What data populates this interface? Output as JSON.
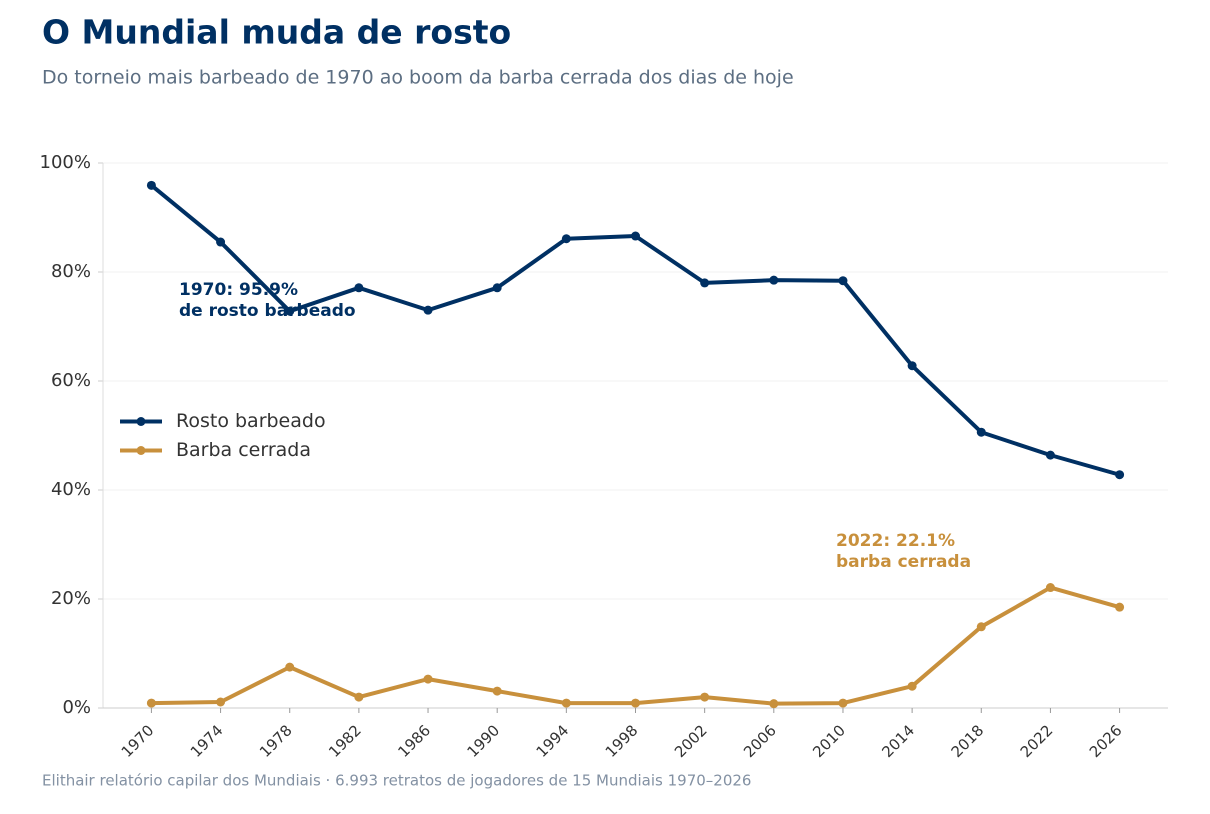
{
  "chart_data": {
    "type": "line",
    "title": "O Mundial muda de rosto",
    "subtitle": "Do torneio mais barbeado de 1970 ao boom da barba cerrada dos dias de hoje",
    "source": "Elithair relatório capilar dos Mundiais  ·  6.993 retratos de jogadores de 15 Mundiais 1970–2026",
    "x": [
      1970,
      1974,
      1978,
      1982,
      1986,
      1990,
      1994,
      1998,
      2002,
      2006,
      2010,
      2014,
      2018,
      2022,
      2026
    ],
    "xlim": [
      1967.2,
      2028.8
    ],
    "xticks": [
      1970,
      1974,
      1978,
      1982,
      1986,
      1990,
      1994,
      1998,
      2002,
      2006,
      2010,
      2014,
      2018,
      2022,
      2026
    ],
    "ylim": [
      0,
      100
    ],
    "yticks": [
      {
        "value": 0,
        "label": "0%"
      },
      {
        "value": 20,
        "label": "20%"
      },
      {
        "value": 40,
        "label": "40%"
      },
      {
        "value": 60,
        "label": "60%"
      },
      {
        "value": 80,
        "label": "80%"
      },
      {
        "value": 100,
        "label": "100%"
      }
    ],
    "grid": true,
    "legend": "center left",
    "series": [
      {
        "name": "Rosto barbeado",
        "color": "#003063",
        "values": [
          95.9,
          85.5,
          72.8,
          77.1,
          73.0,
          77.1,
          86.1,
          86.6,
          78.0,
          78.5,
          78.4,
          62.8,
          50.6,
          46.4,
          42.8
        ]
      },
      {
        "name": "Barba cerrada",
        "color": "#c8903c",
        "values": [
          0.9,
          1.1,
          7.5,
          2.0,
          5.3,
          3.1,
          0.9,
          0.9,
          2.0,
          0.8,
          0.9,
          4.0,
          14.9,
          22.1,
          18.5
        ]
      }
    ],
    "annotations": [
      {
        "lines": [
          "1970: 95.9%",
          "de rosto barbeado"
        ],
        "color": "#003063"
      },
      {
        "lines": [
          "2022: 22.1%",
          "barba cerrada"
        ],
        "color": "#c8903c"
      }
    ]
  }
}
